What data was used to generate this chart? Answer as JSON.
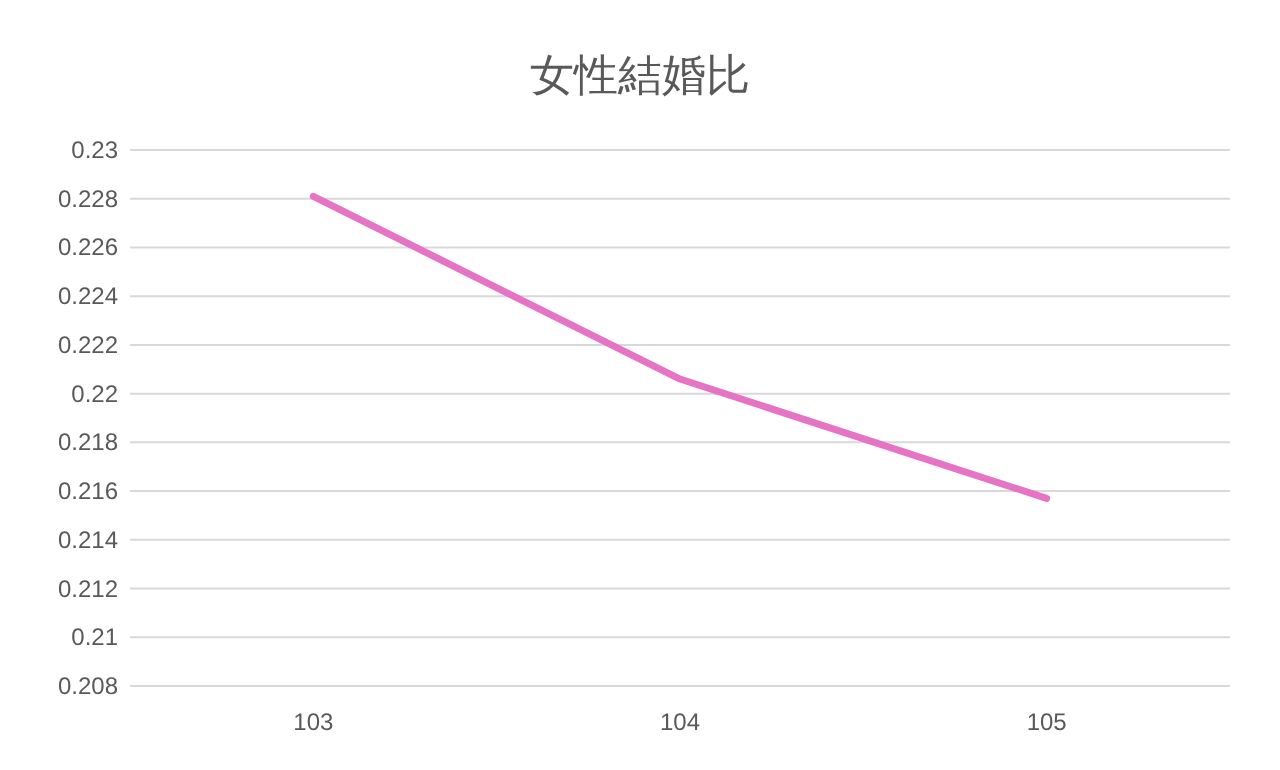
{
  "chart_data": {
    "type": "line",
    "title": "女性結婚比",
    "categories": [
      "103",
      "104",
      "105"
    ],
    "series": [
      {
        "color": "#e673c4",
        "values": [
          0.2281,
          0.2206,
          0.2157
        ]
      }
    ],
    "ylim": [
      0.208,
      0.23
    ],
    "yticks": [
      0.208,
      0.21,
      0.212,
      0.214,
      0.216,
      0.218,
      0.22,
      0.222,
      0.224,
      0.226,
      0.228,
      0.23
    ],
    "grid": "y",
    "marker": "none",
    "line_style": "solid"
  }
}
